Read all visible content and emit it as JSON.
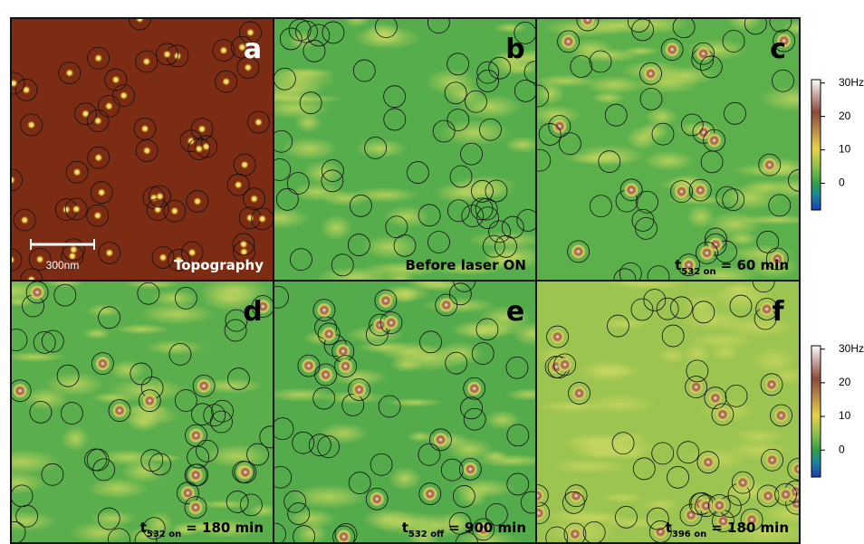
{
  "panels": [
    {
      "letter": "a",
      "caption": "Topography",
      "scale_bar": "300nm"
    },
    {
      "letter": "b",
      "caption": "Before laser ON"
    },
    {
      "letter": "c",
      "caption": {
        "prefix": "t",
        "sub": "532 on",
        "suffix": "= 60 min"
      }
    },
    {
      "letter": "d",
      "caption": {
        "prefix": "t",
        "sub": "532 on",
        "suffix": "= 180 min"
      }
    },
    {
      "letter": "e",
      "caption": {
        "prefix": "t",
        "sub": "532 off",
        "suffix": "= 900 min"
      }
    },
    {
      "letter": "f",
      "caption": {
        "prefix": "t",
        "sub": "396 on",
        "suffix": "= 180 min"
      }
    }
  ],
  "colorbars": [
    {
      "range": [
        -8,
        31
      ],
      "ticks": [
        {
          "value": 30,
          "label": "30Hz"
        },
        20,
        10,
        0
      ]
    },
    {
      "range": [
        -8,
        31
      ],
      "ticks": [
        {
          "value": 30,
          "label": "30Hz"
        },
        20,
        10,
        0
      ]
    }
  ]
}
